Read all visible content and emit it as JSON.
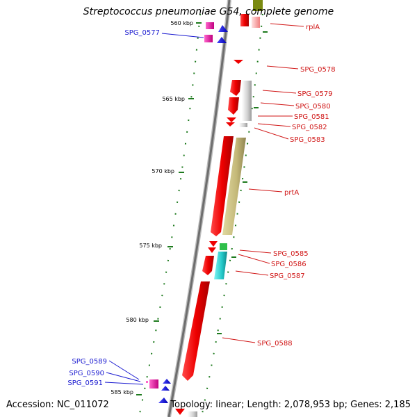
{
  "title": "Streptococcus pneumoniae G54, complete genome",
  "accession": "Accession: NC_011072",
  "summary": "Topology: linear; Length: 2,078,953 bp; Genes: 2,185",
  "colors": {
    "forward_label": "#1a1ad0",
    "reverse_label": "#d01515",
    "tick": "#1d7a1d"
  },
  "ticks": [
    {
      "label": "560 kbp"
    },
    {
      "label": "565 kbp"
    },
    {
      "label": "570 kbp"
    },
    {
      "label": "575 kbp"
    },
    {
      "label": "580 kbp"
    },
    {
      "label": "585 kbp"
    }
  ],
  "genes": [
    {
      "label": "SPG_0577",
      "strand": "forward"
    },
    {
      "label": "rplA",
      "strand": "reverse"
    },
    {
      "label": "SPG_0578",
      "strand": "reverse"
    },
    {
      "label": "SPG_0579",
      "strand": "reverse"
    },
    {
      "label": "SPG_0580",
      "strand": "reverse"
    },
    {
      "label": "SPG_0581",
      "strand": "reverse"
    },
    {
      "label": "SPG_0582",
      "strand": "reverse"
    },
    {
      "label": "SPG_0583",
      "strand": "reverse"
    },
    {
      "label": "prtA",
      "strand": "reverse"
    },
    {
      "label": "SPG_0585",
      "strand": "reverse"
    },
    {
      "label": "SPG_0586",
      "strand": "reverse"
    },
    {
      "label": "SPG_0587",
      "strand": "reverse"
    },
    {
      "label": "SPG_0588",
      "strand": "reverse"
    },
    {
      "label": "SPG_0589",
      "strand": "forward"
    },
    {
      "label": "SPG_0590",
      "strand": "forward"
    },
    {
      "label": "SPG_0591",
      "strand": "forward"
    }
  ]
}
